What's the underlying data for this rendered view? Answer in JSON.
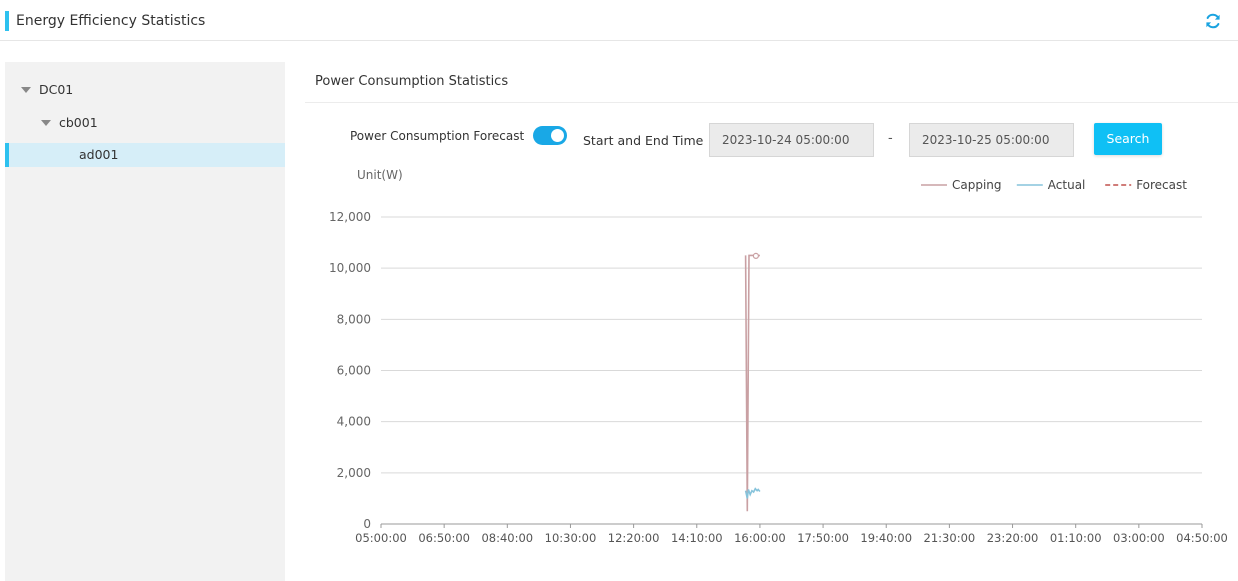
{
  "header": {
    "title": "Energy Efficiency Statistics",
    "accent_color": "#2dc1ef",
    "refresh_icon": "refresh-icon"
  },
  "tree": [
    {
      "label": "DC01",
      "level": 0,
      "expanded": true,
      "selected": false
    },
    {
      "label": "cb001",
      "level": 1,
      "expanded": true,
      "selected": false
    },
    {
      "label": "ad001",
      "level": 2,
      "expanded": false,
      "selected": true
    }
  ],
  "panel": {
    "title": "Power Consumption Statistics",
    "forecast_label": "Power Consumption Forecast",
    "forecast_enabled": true,
    "time_label": "Start and End Time",
    "start_time": "2023-10-24 05:00:00",
    "separator": "-",
    "end_time": "2023-10-25 05:00:00",
    "search_label": "Search"
  },
  "chart_data": {
    "type": "line",
    "unit_label": "Unit(W)",
    "legend_position": "top-right",
    "y_ticks": [
      "12,000",
      "10,000",
      "8,000",
      "6,000",
      "4,000",
      "2,000",
      "0"
    ],
    "ylim": [
      0,
      12000
    ],
    "x_ticks": [
      "05:00:00",
      "06:50:00",
      "08:40:00",
      "10:30:00",
      "12:20:00",
      "14:10:00",
      "16:00:00",
      "17:50:00",
      "19:40:00",
      "21:30:00",
      "23:20:00",
      "01:10:00",
      "03:00:00",
      "04:50:00"
    ],
    "x_start_min": 300,
    "x_end_min": 1730,
    "grid": true,
    "series": [
      {
        "name": "Capping",
        "color": "#c9a0a3",
        "dashed": false,
        "points": [
          [
            935,
            10500
          ],
          [
            938,
            500
          ],
          [
            941,
            10500
          ],
          [
            949,
            10500
          ],
          [
            953,
            10480
          ],
          [
            960,
            10500
          ]
        ]
      },
      {
        "name": "Actual",
        "color": "#86c3db",
        "dashed": false,
        "points": [
          [
            935,
            1300
          ],
          [
            938,
            1000
          ],
          [
            940,
            1350
          ],
          [
            943,
            1150
          ],
          [
            946,
            1300
          ],
          [
            949,
            1250
          ],
          [
            952,
            1380
          ],
          [
            955,
            1300
          ],
          [
            957,
            1350
          ],
          [
            960,
            1270
          ]
        ]
      },
      {
        "name": "Forecast",
        "color": "#c0504d",
        "dashed": true,
        "points": []
      }
    ]
  }
}
